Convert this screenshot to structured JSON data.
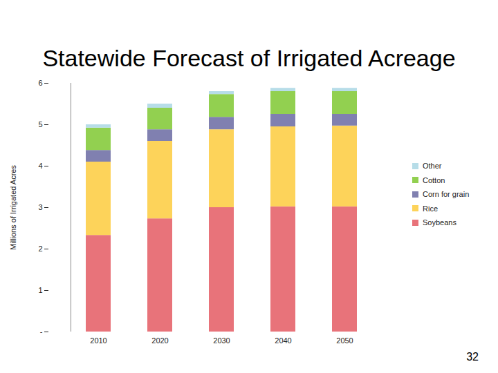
{
  "chart_data": {
    "type": "bar",
    "stacked": true,
    "title": "Statewide Forecast of Irrigated Acreage",
    "y_label": "Millions of Irrigated Acres",
    "categories": [
      "2010",
      "2020",
      "2030",
      "2040",
      "2050"
    ],
    "series": [
      {
        "name": "Soybeans",
        "color": "#e8737a",
        "values": [
          2.33,
          2.73,
          3.0,
          3.02,
          3.02
        ]
      },
      {
        "name": "Rice",
        "color": "#fdd35a",
        "values": [
          1.77,
          1.87,
          1.88,
          1.93,
          1.95
        ]
      },
      {
        "name": "Corn for grain",
        "color": "#8080b0",
        "values": [
          0.28,
          0.28,
          0.3,
          0.3,
          0.28
        ]
      },
      {
        "name": "Cotton",
        "color": "#92d050",
        "values": [
          0.54,
          0.52,
          0.55,
          0.55,
          0.55
        ]
      },
      {
        "name": "Other",
        "color": "#b7dde8",
        "values": [
          0.08,
          0.1,
          0.07,
          0.08,
          0.08
        ]
      }
    ],
    "ylim": [
      0,
      6
    ],
    "yticks": [
      {
        "value": 0,
        "label": "-"
      },
      1,
      2,
      3,
      4,
      5,
      6
    ],
    "grid": false,
    "legend": "right",
    "annotations": [
      "32"
    ]
  }
}
